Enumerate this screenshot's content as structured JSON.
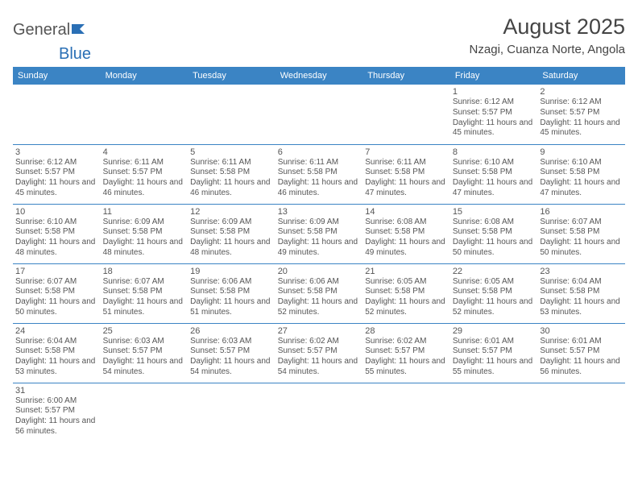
{
  "logo": {
    "text1": "General",
    "text2": "Blue"
  },
  "title": "August 2025",
  "location": "Nzagi, Cuanza Norte, Angola",
  "headerBg": "#3b84c4",
  "headerFg": "#ffffff",
  "borderColor": "#3b84c4",
  "days": [
    "Sunday",
    "Monday",
    "Tuesday",
    "Wednesday",
    "Thursday",
    "Friday",
    "Saturday"
  ],
  "weeks": [
    [
      null,
      null,
      null,
      null,
      null,
      {
        "n": "1",
        "r": "6:12 AM",
        "s": "5:57 PM",
        "d": "11 hours and 45 minutes."
      },
      {
        "n": "2",
        "r": "6:12 AM",
        "s": "5:57 PM",
        "d": "11 hours and 45 minutes."
      }
    ],
    [
      {
        "n": "3",
        "r": "6:12 AM",
        "s": "5:57 PM",
        "d": "11 hours and 45 minutes."
      },
      {
        "n": "4",
        "r": "6:11 AM",
        "s": "5:57 PM",
        "d": "11 hours and 46 minutes."
      },
      {
        "n": "5",
        "r": "6:11 AM",
        "s": "5:58 PM",
        "d": "11 hours and 46 minutes."
      },
      {
        "n": "6",
        "r": "6:11 AM",
        "s": "5:58 PM",
        "d": "11 hours and 46 minutes."
      },
      {
        "n": "7",
        "r": "6:11 AM",
        "s": "5:58 PM",
        "d": "11 hours and 47 minutes."
      },
      {
        "n": "8",
        "r": "6:10 AM",
        "s": "5:58 PM",
        "d": "11 hours and 47 minutes."
      },
      {
        "n": "9",
        "r": "6:10 AM",
        "s": "5:58 PM",
        "d": "11 hours and 47 minutes."
      }
    ],
    [
      {
        "n": "10",
        "r": "6:10 AM",
        "s": "5:58 PM",
        "d": "11 hours and 48 minutes."
      },
      {
        "n": "11",
        "r": "6:09 AM",
        "s": "5:58 PM",
        "d": "11 hours and 48 minutes."
      },
      {
        "n": "12",
        "r": "6:09 AM",
        "s": "5:58 PM",
        "d": "11 hours and 48 minutes."
      },
      {
        "n": "13",
        "r": "6:09 AM",
        "s": "5:58 PM",
        "d": "11 hours and 49 minutes."
      },
      {
        "n": "14",
        "r": "6:08 AM",
        "s": "5:58 PM",
        "d": "11 hours and 49 minutes."
      },
      {
        "n": "15",
        "r": "6:08 AM",
        "s": "5:58 PM",
        "d": "11 hours and 50 minutes."
      },
      {
        "n": "16",
        "r": "6:07 AM",
        "s": "5:58 PM",
        "d": "11 hours and 50 minutes."
      }
    ],
    [
      {
        "n": "17",
        "r": "6:07 AM",
        "s": "5:58 PM",
        "d": "11 hours and 50 minutes."
      },
      {
        "n": "18",
        "r": "6:07 AM",
        "s": "5:58 PM",
        "d": "11 hours and 51 minutes."
      },
      {
        "n": "19",
        "r": "6:06 AM",
        "s": "5:58 PM",
        "d": "11 hours and 51 minutes."
      },
      {
        "n": "20",
        "r": "6:06 AM",
        "s": "5:58 PM",
        "d": "11 hours and 52 minutes."
      },
      {
        "n": "21",
        "r": "6:05 AM",
        "s": "5:58 PM",
        "d": "11 hours and 52 minutes."
      },
      {
        "n": "22",
        "r": "6:05 AM",
        "s": "5:58 PM",
        "d": "11 hours and 52 minutes."
      },
      {
        "n": "23",
        "r": "6:04 AM",
        "s": "5:58 PM",
        "d": "11 hours and 53 minutes."
      }
    ],
    [
      {
        "n": "24",
        "r": "6:04 AM",
        "s": "5:58 PM",
        "d": "11 hours and 53 minutes."
      },
      {
        "n": "25",
        "r": "6:03 AM",
        "s": "5:57 PM",
        "d": "11 hours and 54 minutes."
      },
      {
        "n": "26",
        "r": "6:03 AM",
        "s": "5:57 PM",
        "d": "11 hours and 54 minutes."
      },
      {
        "n": "27",
        "r": "6:02 AM",
        "s": "5:57 PM",
        "d": "11 hours and 54 minutes."
      },
      {
        "n": "28",
        "r": "6:02 AM",
        "s": "5:57 PM",
        "d": "11 hours and 55 minutes."
      },
      {
        "n": "29",
        "r": "6:01 AM",
        "s": "5:57 PM",
        "d": "11 hours and 55 minutes."
      },
      {
        "n": "30",
        "r": "6:01 AM",
        "s": "5:57 PM",
        "d": "11 hours and 56 minutes."
      }
    ],
    [
      {
        "n": "31",
        "r": "6:00 AM",
        "s": "5:57 PM",
        "d": "11 hours and 56 minutes."
      },
      null,
      null,
      null,
      null,
      null,
      null
    ]
  ],
  "labels": {
    "sunrise": "Sunrise: ",
    "sunset": "Sunset: ",
    "daylight": "Daylight: "
  }
}
